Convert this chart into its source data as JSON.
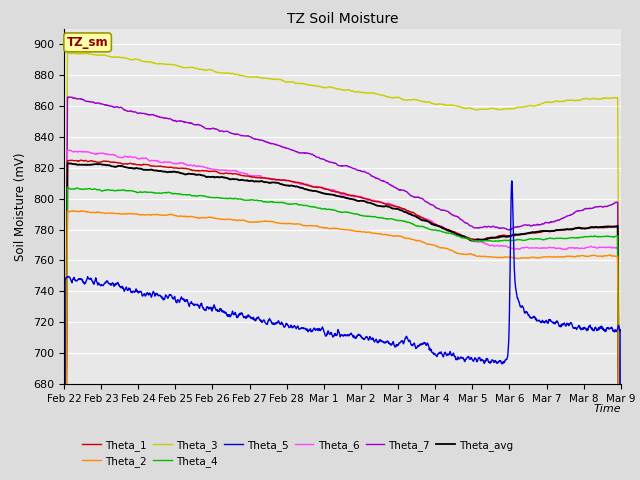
{
  "title": "TZ Soil Moisture",
  "ylabel": "Soil Moisture (mV)",
  "xlabel": "Time",
  "annotation_text": "TZ_sm",
  "ylim": [
    680,
    910
  ],
  "yticks": [
    680,
    700,
    720,
    740,
    760,
    780,
    800,
    820,
    840,
    860,
    880,
    900
  ],
  "background_color": "#dcdcdc",
  "axes_bg_color": "#e8e8e8",
  "grid_color": "#ffffff",
  "series_colors": {
    "Theta_1": "#cc0000",
    "Theta_2": "#ff8800",
    "Theta_3": "#cccc00",
    "Theta_4": "#00bb00",
    "Theta_5": "#0000dd",
    "Theta_6": "#ff44ff",
    "Theta_7": "#9900cc",
    "Theta_avg": "#000000"
  },
  "date_labels": [
    "Feb 22",
    "Feb 23",
    "Feb 24",
    "Feb 25",
    "Feb 26",
    "Feb 27",
    "Feb 28",
    "Mar 1",
    "Mar 2",
    "Mar 3",
    "Mar 4",
    "Mar 5",
    "Mar 6",
    "Mar 7",
    "Mar 8",
    "Mar 9"
  ]
}
